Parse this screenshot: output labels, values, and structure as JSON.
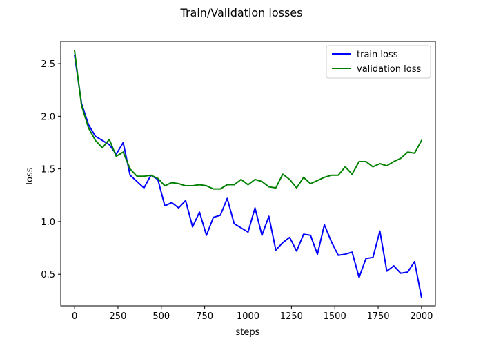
{
  "chart_data": {
    "type": "line",
    "title": "Train/Validation losses",
    "xlabel": "steps",
    "ylabel": "loss",
    "xlim": [
      -80,
      2080
    ],
    "ylim": [
      0.2,
      2.71
    ],
    "xticks": [
      0,
      250,
      500,
      750,
      1000,
      1250,
      1500,
      1750,
      2000
    ],
    "xtick_labels": [
      "0",
      "250",
      "500",
      "750",
      "1000",
      "1250",
      "1500",
      "1750",
      "2000"
    ],
    "yticks": [
      0.5,
      1.0,
      1.5,
      2.0,
      2.5
    ],
    "ytick_labels": [
      "0.5",
      "1.0",
      "1.5",
      "2.0",
      "2.5"
    ],
    "grid": false,
    "legend_position": "upper right",
    "x": [
      0,
      40,
      80,
      120,
      160,
      200,
      240,
      280,
      320,
      360,
      400,
      440,
      480,
      520,
      560,
      600,
      640,
      680,
      720,
      760,
      800,
      840,
      880,
      920,
      960,
      1000,
      1040,
      1080,
      1120,
      1160,
      1200,
      1240,
      1280,
      1320,
      1360,
      1400,
      1440,
      1480,
      1520,
      1560,
      1600,
      1640,
      1680,
      1720,
      1760,
      1800,
      1840,
      1880,
      1920,
      1960,
      2000
    ],
    "series": [
      {
        "name": "train loss",
        "color": "#0000ff",
        "values": [
          2.58,
          2.12,
          1.92,
          1.81,
          1.77,
          1.73,
          1.64,
          1.75,
          1.44,
          1.38,
          1.32,
          1.44,
          1.4,
          1.15,
          1.18,
          1.13,
          1.2,
          0.95,
          1.09,
          0.87,
          1.04,
          1.06,
          1.22,
          0.98,
          0.94,
          0.9,
          1.13,
          0.87,
          1.05,
          0.73,
          0.8,
          0.85,
          0.72,
          0.88,
          0.87,
          0.69,
          0.97,
          0.81,
          0.68,
          0.69,
          0.71,
          0.47,
          0.65,
          0.66,
          0.91,
          0.53,
          0.58,
          0.51,
          0.52,
          0.62,
          0.28
        ]
      },
      {
        "name": "validation loss",
        "color": "#008000",
        "values": [
          2.62,
          2.1,
          1.89,
          1.77,
          1.7,
          1.78,
          1.62,
          1.66,
          1.5,
          1.43,
          1.43,
          1.44,
          1.41,
          1.34,
          1.37,
          1.36,
          1.34,
          1.34,
          1.35,
          1.34,
          1.31,
          1.31,
          1.35,
          1.35,
          1.4,
          1.35,
          1.4,
          1.38,
          1.33,
          1.32,
          1.45,
          1.4,
          1.32,
          1.42,
          1.36,
          1.39,
          1.42,
          1.44,
          1.44,
          1.52,
          1.45,
          1.57,
          1.57,
          1.52,
          1.55,
          1.53,
          1.57,
          1.6,
          1.66,
          1.65,
          1.77
        ]
      }
    ]
  }
}
